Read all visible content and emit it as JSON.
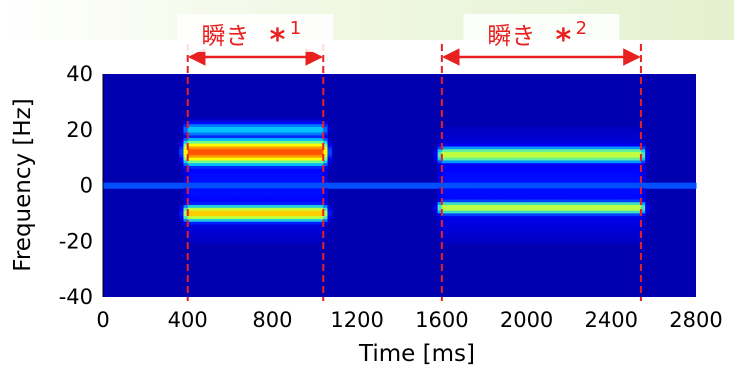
{
  "chart_data": {
    "type": "heatmap",
    "title": "",
    "xlabel": "Time [ms]",
    "ylabel": "Frequency [Hz]",
    "xlim": [
      0,
      2800
    ],
    "ylim": [
      -40,
      40
    ],
    "x_ticks": [
      "0",
      "400",
      "800",
      "1200",
      "1600",
      "2000",
      "2400",
      "2800"
    ],
    "y_ticks": [
      "40",
      "20",
      "0",
      "-20",
      "-40"
    ],
    "colormap": [
      "#00008f",
      "#0000ff",
      "#00bfff",
      "#7fff7f",
      "#ffff00",
      "#ff8000",
      "#ff0000"
    ],
    "background_level": 0.05,
    "bursts": [
      {
        "time_range": [
          400,
          1040
        ],
        "bands": [
          {
            "freq_center": 12,
            "freq_width": 9,
            "level": 0.9
          },
          {
            "freq_center": -10,
            "freq_width": 6,
            "level": 0.75
          },
          {
            "freq_center": 20,
            "freq_width": 6,
            "level": 0.35
          }
        ]
      },
      {
        "time_range": [
          1600,
          2540
        ],
        "bands": [
          {
            "freq_center": 11,
            "freq_width": 6,
            "level": 0.6
          },
          {
            "freq_center": -8,
            "freq_width": 5,
            "level": 0.6
          }
        ]
      }
    ],
    "dc_line": {
      "freq_center": 0,
      "level": 0.35
    },
    "annotations": [
      {
        "label": "瞬き",
        "marker": "*",
        "number": "1",
        "x_range": [
          400,
          1040
        ]
      },
      {
        "label": "瞬き",
        "marker": "*",
        "number": "2",
        "x_range": [
          1600,
          2540
        ]
      }
    ],
    "annotation_color": "#e82020"
  }
}
